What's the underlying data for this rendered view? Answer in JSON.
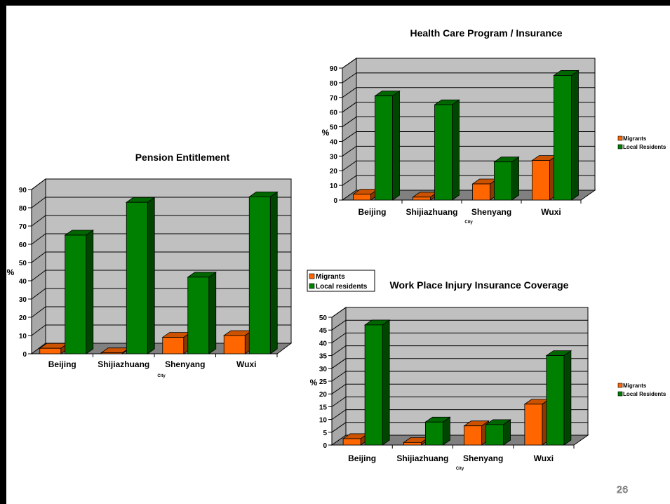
{
  "slide": {
    "page_number": "26"
  },
  "chart_data": [
    {
      "type": "bar",
      "title": "Pension Entitlement",
      "xlabel": "City",
      "ylabel": "%",
      "ylim": [
        0,
        90
      ],
      "yticks": [
        0,
        10,
        20,
        30,
        40,
        50,
        60,
        70,
        80,
        90
      ],
      "categories": [
        "Beijing",
        "Shijiazhuang",
        "Shenyang",
        "Wuxi"
      ],
      "series": [
        {
          "name": "Migrants",
          "values": [
            3,
            0.5,
            9,
            10
          ]
        },
        {
          "name": "Local residents",
          "values": [
            65,
            83,
            42,
            86
          ]
        }
      ],
      "legend": "right",
      "colors": {
        "Migrants": "#FF6600",
        "Local residents": "#008000"
      }
    },
    {
      "type": "bar",
      "title": "Health Care Program / Insurance",
      "xlabel": "City",
      "ylabel": "%",
      "ylim": [
        0,
        90
      ],
      "yticks": [
        0,
        10,
        20,
        30,
        40,
        50,
        60,
        70,
        80,
        90
      ],
      "categories": [
        "Beijing",
        "Shijiazhuang",
        "Shenyang",
        "Wuxi"
      ],
      "series": [
        {
          "name": "Migrants",
          "values": [
            4,
            2,
            11,
            27
          ]
        },
        {
          "name": "Local Residents",
          "values": [
            71,
            65,
            26,
            85
          ]
        }
      ],
      "legend": "right",
      "colors": {
        "Migrants": "#FF6600",
        "Local Residents": "#008000"
      }
    },
    {
      "type": "bar",
      "title": "Work Place Injury Insurance Coverage",
      "xlabel": "City",
      "ylabel": "%",
      "ylim": [
        0,
        50
      ],
      "yticks": [
        0,
        5,
        10,
        15,
        20,
        25,
        30,
        35,
        40,
        45,
        50
      ],
      "categories": [
        "Beijing",
        "Shijiazhuang",
        "Shenyang",
        "Wuxi"
      ],
      "series": [
        {
          "name": "Migrants",
          "values": [
            2.5,
            1,
            7.5,
            16
          ]
        },
        {
          "name": "Local Residents",
          "values": [
            47,
            9,
            8,
            35
          ]
        }
      ],
      "legend": "right",
      "colors": {
        "Migrants": "#FF6600",
        "Local Residents": "#008000"
      }
    }
  ]
}
